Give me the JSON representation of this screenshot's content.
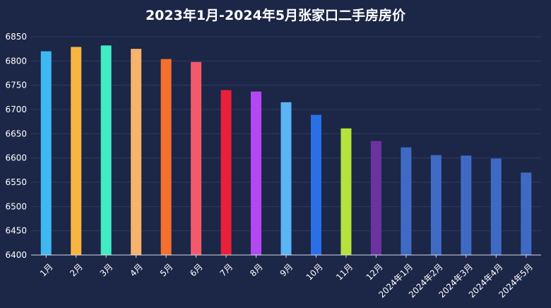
{
  "chart_data": {
    "type": "bar",
    "title": "2023年1月-2024年5月张家口二手房房价",
    "xlabel": "",
    "ylabel": "",
    "ylim": [
      6400,
      6850
    ],
    "yticks": [
      6400,
      6450,
      6500,
      6550,
      6600,
      6650,
      6700,
      6750,
      6800,
      6850
    ],
    "grid": true,
    "categories": [
      "1月",
      "2月",
      "3月",
      "4月",
      "5月",
      "6月",
      "7月",
      "8月",
      "9月",
      "10月",
      "11月",
      "12月",
      "2024年1月",
      "2024年2月",
      "2024年3月",
      "2024年4月",
      "2024年5月"
    ],
    "values": [
      6820,
      6829,
      6832,
      6825,
      6804,
      6798,
      6740,
      6737,
      6715,
      6689,
      6661,
      6635,
      6622,
      6606,
      6605,
      6599,
      6570
    ],
    "colors": [
      "#3db8f0",
      "#f7b43f",
      "#41ebc4",
      "#f7b26b",
      "#f4702e",
      "#f25a6c",
      "#e8203a",
      "#b347f2",
      "#5ab4f5",
      "#2a6fe6",
      "#b6e23c",
      "#6c32a0",
      "#3f6ac4",
      "#3f6ac4",
      "#3f6ac4",
      "#3f6ac4",
      "#3f6ac4"
    ]
  }
}
